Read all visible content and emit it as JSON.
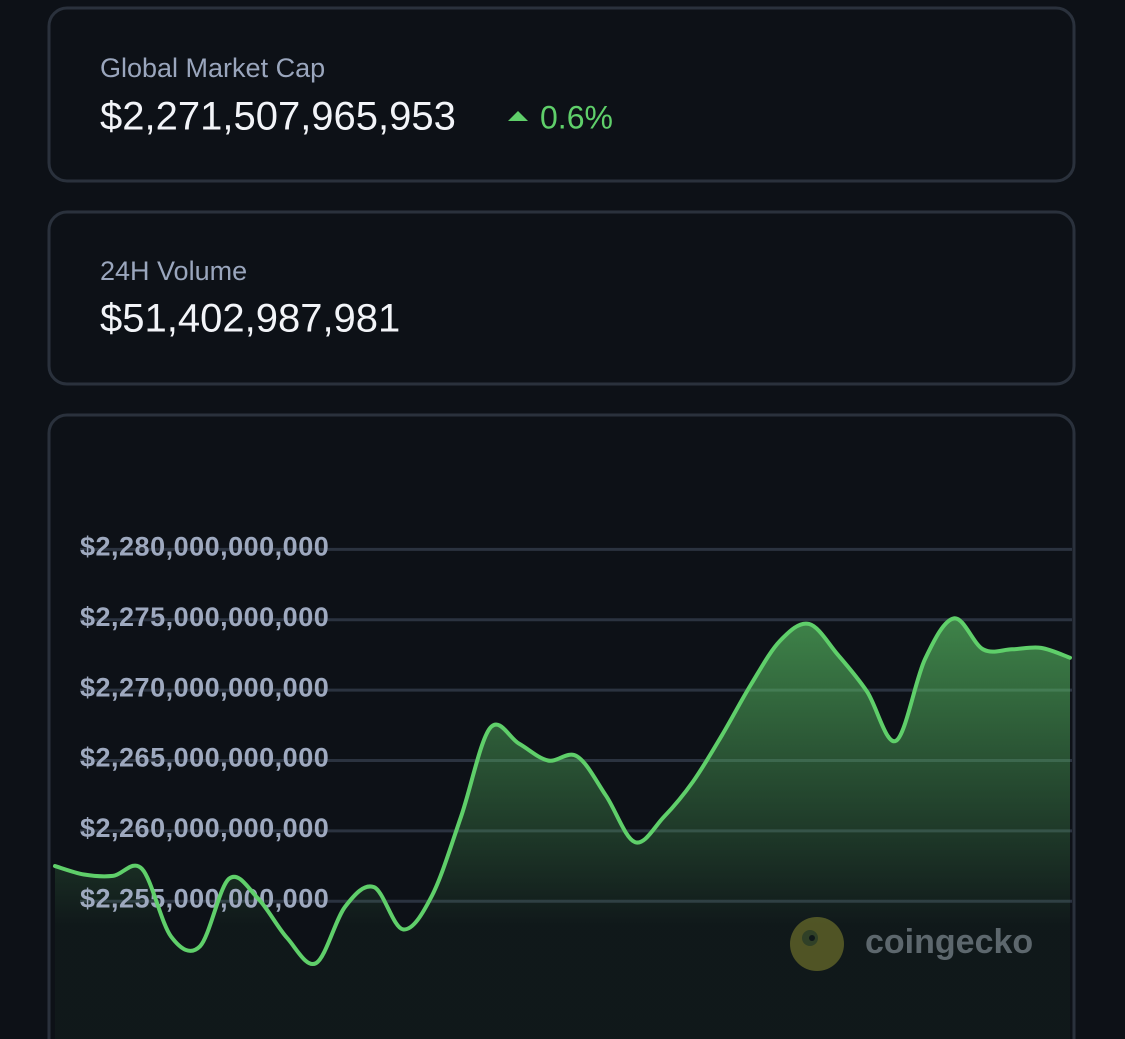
{
  "cards": [
    {
      "label": "Global Market Cap",
      "value": "$2,271,507,965,953",
      "change": "0.6%"
    },
    {
      "label": "24H Volume",
      "value": "$51,402,987,981"
    }
  ],
  "chart_data": {
    "type": "area",
    "color": "#5fcf6a",
    "grid": true,
    "watermark": "coingecko",
    "ylim": [
      2245000000000,
      2285000000000
    ],
    "yticks": [
      {
        "value": 2255000000000,
        "label": "$2,255,000,000,000"
      },
      {
        "value": 2260000000000,
        "label": "$2,260,000,000,000"
      },
      {
        "value": 2265000000000,
        "label": "$2,265,000,000,000"
      },
      {
        "value": 2270000000000,
        "label": "$2,270,000,000,000"
      },
      {
        "value": 2275000000000,
        "label": "$2,275,000,000,000"
      },
      {
        "value": 2280000000000,
        "label": "$2,280,000,000,000"
      }
    ],
    "values": [
      2257500000000,
      2256900000000,
      2256800000000,
      2257300000000,
      2252500000000,
      2251800000000,
      2256600000000,
      2255200000000,
      2252400000000,
      2250600000000,
      2254600000000,
      2256000000000,
      2253000000000,
      2255400000000,
      2261000000000,
      2267300000000,
      2266200000000,
      2265000000000,
      2265300000000,
      2262500000000,
      2259200000000,
      2261000000000,
      2263500000000,
      2266800000000,
      2270400000000,
      2273500000000,
      2274700000000,
      2272500000000,
      2269900000000,
      2266400000000,
      2272200000000,
      2275100000000,
      2272900000000,
      2272900000000,
      2273000000000,
      2272300000000
    ]
  }
}
